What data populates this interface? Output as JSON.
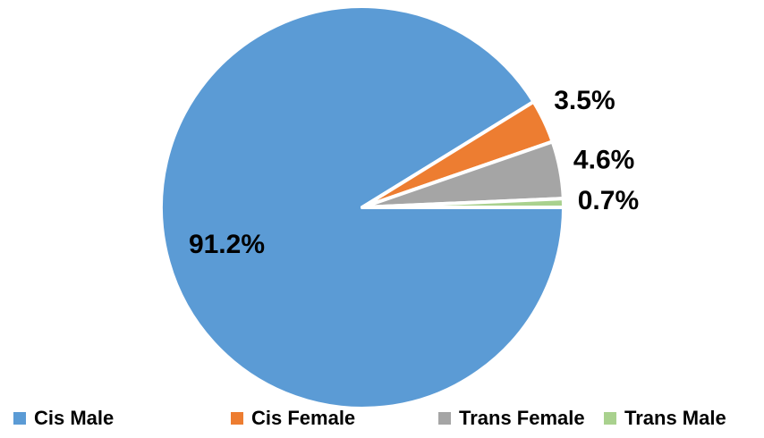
{
  "chart_data": {
    "type": "pie",
    "categories": [
      "Cis Male",
      "Cis Female",
      "Trans Female",
      "Trans Male"
    ],
    "values": [
      91.2,
      3.5,
      4.6,
      0.7
    ],
    "value_labels": [
      "91.2%",
      "3.5%",
      "4.6%",
      "0.7%"
    ],
    "colors": [
      "#5b9bd5",
      "#ed7d31",
      "#a5a5a5",
      "#a9d18e"
    ],
    "legend": "bottom"
  }
}
